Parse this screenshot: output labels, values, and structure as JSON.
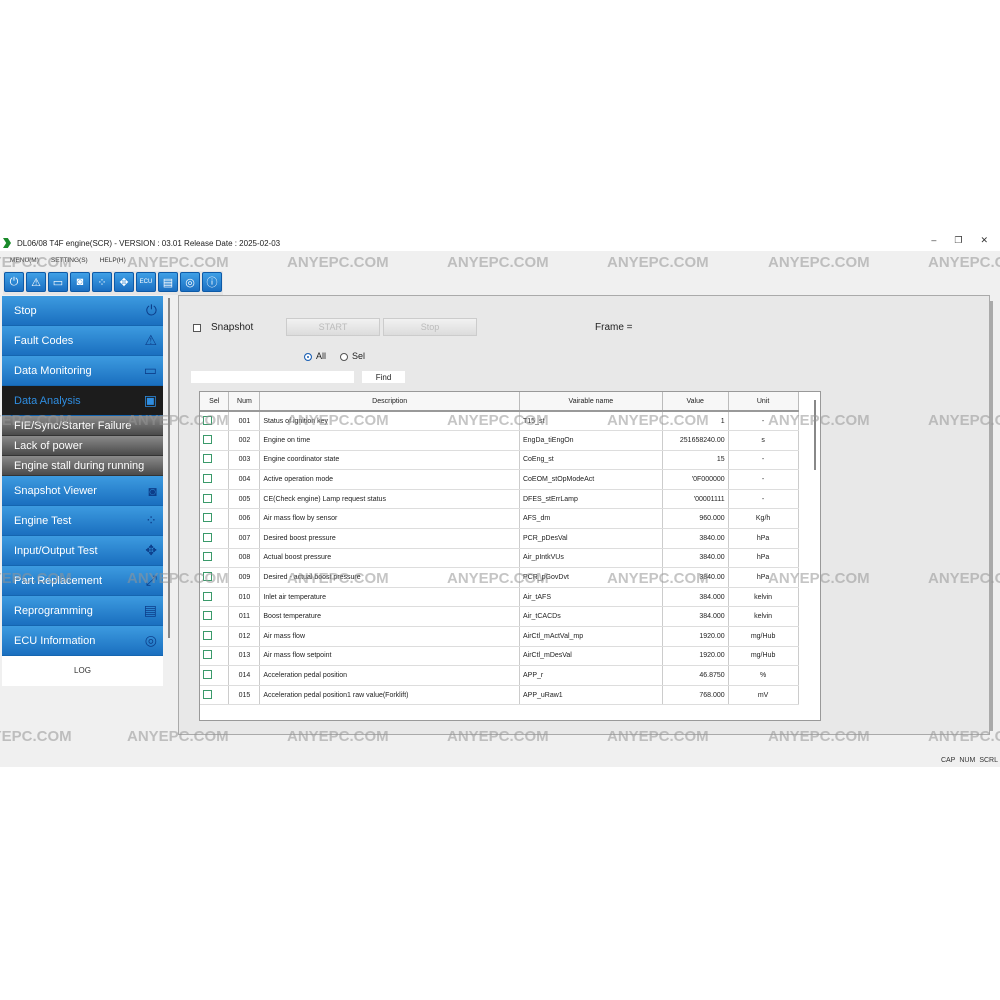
{
  "window": {
    "title": "DL06/08 T4F engine(SCR) - VERSION : 03.01 Release Date : 2025-02-03",
    "minimize": "–",
    "restore": "❐",
    "close": "✕"
  },
  "menu": [
    "MENU(M)",
    "SETTING(S)",
    "HELP(H)"
  ],
  "toolbar": [
    {
      "icon": "power-icon",
      "glyph": "⏻"
    },
    {
      "icon": "warning-icon",
      "glyph": "⚠"
    },
    {
      "icon": "monitor-icon",
      "glyph": "▭"
    },
    {
      "icon": "camera-icon",
      "glyph": "◙"
    },
    {
      "icon": "engine-test-icon",
      "glyph": "⁘"
    },
    {
      "icon": "io-icon",
      "glyph": "✥"
    },
    {
      "icon": "ecu-icon",
      "glyph": "ECU"
    },
    {
      "icon": "reprogram-icon",
      "glyph": "▤"
    },
    {
      "icon": "ecu-info-icon",
      "glyph": "◎"
    },
    {
      "icon": "info-icon",
      "glyph": "ⓘ"
    }
  ],
  "sidebar": {
    "items": [
      {
        "label": "Stop",
        "icon": "⏻"
      },
      {
        "label": "Fault Codes",
        "icon": "⚠"
      },
      {
        "label": "Data Monitoring",
        "icon": "▭"
      },
      {
        "label": "Data Analysis",
        "icon": "▣",
        "active": true
      }
    ],
    "sub_items": [
      "FIE/Sync/Starter Failure",
      "Lack of power",
      "Engine stall during running"
    ],
    "items2": [
      {
        "label": "Snapshot Viewer",
        "icon": "◙"
      },
      {
        "label": "Engine Test",
        "icon": "⁘"
      },
      {
        "label": "Input/Output Test",
        "icon": "✥"
      },
      {
        "label": "Part Replacement",
        "icon": "⤢"
      },
      {
        "label": "Reprogramming",
        "icon": "▤"
      },
      {
        "label": "ECU Information",
        "icon": "◎"
      }
    ],
    "log": "LOG"
  },
  "controls": {
    "snapshot": "Snapshot",
    "start": "START",
    "stop": "Stop",
    "frame": "Frame =",
    "all": "All",
    "sel": "Sel",
    "find": "Find",
    "find_value": ""
  },
  "table": {
    "headers": [
      "Sel",
      "Num",
      "Description",
      "Vairable name",
      "Value",
      "Unit"
    ],
    "rows": [
      [
        "001",
        "Status of ignition key",
        "T15_st",
        "1",
        "-"
      ],
      [
        "002",
        "Engine on time",
        "EngDa_tiEngOn",
        "251658240.00",
        "s"
      ],
      [
        "003",
        "Engine coordinator state",
        "CoEng_st",
        "15",
        "-"
      ],
      [
        "004",
        "Active operation mode",
        "CoEOM_stOpModeAct",
        "'0F000000",
        "-"
      ],
      [
        "005",
        "CE(Check engine) Lamp request status",
        "DFES_stErrLamp",
        "'00001111",
        "-"
      ],
      [
        "006",
        "Air mass flow by sensor",
        "AFS_dm",
        "960.000",
        "Kg/h"
      ],
      [
        "007",
        "Desired boost pressure",
        "PCR_pDesVal",
        "3840.00",
        "hPa"
      ],
      [
        "008",
        "Actual boost pressure",
        "Air_pIntkVUs",
        "3840.00",
        "hPa"
      ],
      [
        "009",
        "Desired - actual boost pressure",
        "PCR_pGovDvt",
        "3840.00",
        "hPa"
      ],
      [
        "010",
        "Inlet air temperature",
        "Air_tAFS",
        "384.000",
        "kelvin"
      ],
      [
        "011",
        "Boost temperature",
        "Air_tCACDs",
        "384.000",
        "kelvin"
      ],
      [
        "012",
        "Air mass flow",
        "AirCtl_mActVal_mp",
        "1920.00",
        "mg/Hub"
      ],
      [
        "013",
        "Air mass flow setpoint",
        "AirCtl_mDesVal",
        "1920.00",
        "mg/Hub"
      ],
      [
        "014",
        "Acceleration pedal position",
        "APP_r",
        "46.8750",
        "%"
      ],
      [
        "015",
        "Acceleration pedal position1 raw value(Forklift)",
        "APP_uRaw1",
        "768.000",
        "mV"
      ]
    ]
  },
  "status": {
    "keys": [
      "CAP",
      "NUM",
      "SCRL"
    ]
  },
  "watermark": "ANYEPC.COM"
}
